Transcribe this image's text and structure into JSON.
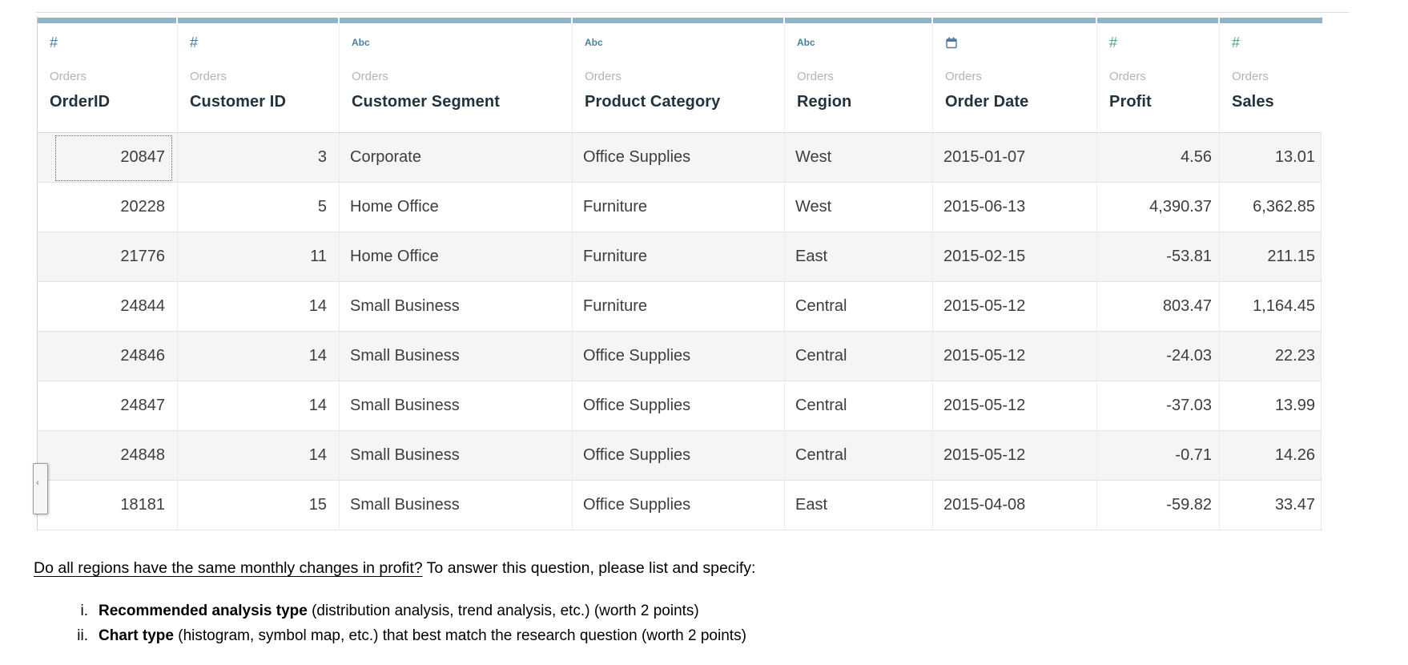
{
  "colors": {
    "header_bar": "#90b4c6",
    "dimension_blue": "#4a7e9e",
    "measure_green": "#53a08e",
    "row_alt": "#f5f5f5"
  },
  "icons": {
    "number_glyph": "#",
    "text_glyph": "Abc",
    "date_icon": "calendar-icon",
    "handle_chevron": "‹"
  },
  "table": {
    "source_label": "Orders",
    "columns": [
      {
        "name": "OrderID",
        "type": "number",
        "role": "dimension"
      },
      {
        "name": "Customer ID",
        "type": "number",
        "role": "dimension"
      },
      {
        "name": "Customer Segment",
        "type": "string",
        "role": "dimension"
      },
      {
        "name": "Product Category",
        "type": "string",
        "role": "dimension"
      },
      {
        "name": "Region",
        "type": "string",
        "role": "dimension"
      },
      {
        "name": "Order Date",
        "type": "date",
        "role": "dimension"
      },
      {
        "name": "Profit",
        "type": "number",
        "role": "measure"
      },
      {
        "name": "Sales",
        "type": "number",
        "role": "measure"
      }
    ],
    "rows": [
      [
        "20847",
        "3",
        "Corporate",
        "Office Supplies",
        "West",
        "2015-01-07",
        "4.56",
        "13.01"
      ],
      [
        "20228",
        "5",
        "Home Office",
        "Furniture",
        "West",
        "2015-06-13",
        "4,390.37",
        "6,362.85"
      ],
      [
        "21776",
        "11",
        "Home Office",
        "Furniture",
        "East",
        "2015-02-15",
        "-53.81",
        "211.15"
      ],
      [
        "24844",
        "14",
        "Small Business",
        "Furniture",
        "Central",
        "2015-05-12",
        "803.47",
        "1,164.45"
      ],
      [
        "24846",
        "14",
        "Small Business",
        "Office Supplies",
        "Central",
        "2015-05-12",
        "-24.03",
        "22.23"
      ],
      [
        "24847",
        "14",
        "Small Business",
        "Office Supplies",
        "Central",
        "2015-05-12",
        "-37.03",
        "13.99"
      ],
      [
        "24848",
        "14",
        "Small Business",
        "Office Supplies",
        "Central",
        "2015-05-12",
        "-0.71",
        "14.26"
      ],
      [
        "18181",
        "15",
        "Small Business",
        "Office Supplies",
        "East",
        "2015-04-08",
        "-59.82",
        "33.47"
      ]
    ],
    "selected_cell": {
      "row": 0,
      "column": 0,
      "value": "20847"
    }
  },
  "question": {
    "underlined": "Do all regions have the same monthly changes in profit?",
    "rest": " To answer this question, please list and specify:"
  },
  "tasks": [
    {
      "marker": "i.",
      "bold": "Recommended analysis type",
      "rest": " (distribution analysis, trend analysis, etc.) (worth 2 points)"
    },
    {
      "marker": "ii.",
      "bold": "Chart type",
      "rest": " (histogram, symbol map, etc.) that best match the research question (worth 2 points)"
    }
  ]
}
